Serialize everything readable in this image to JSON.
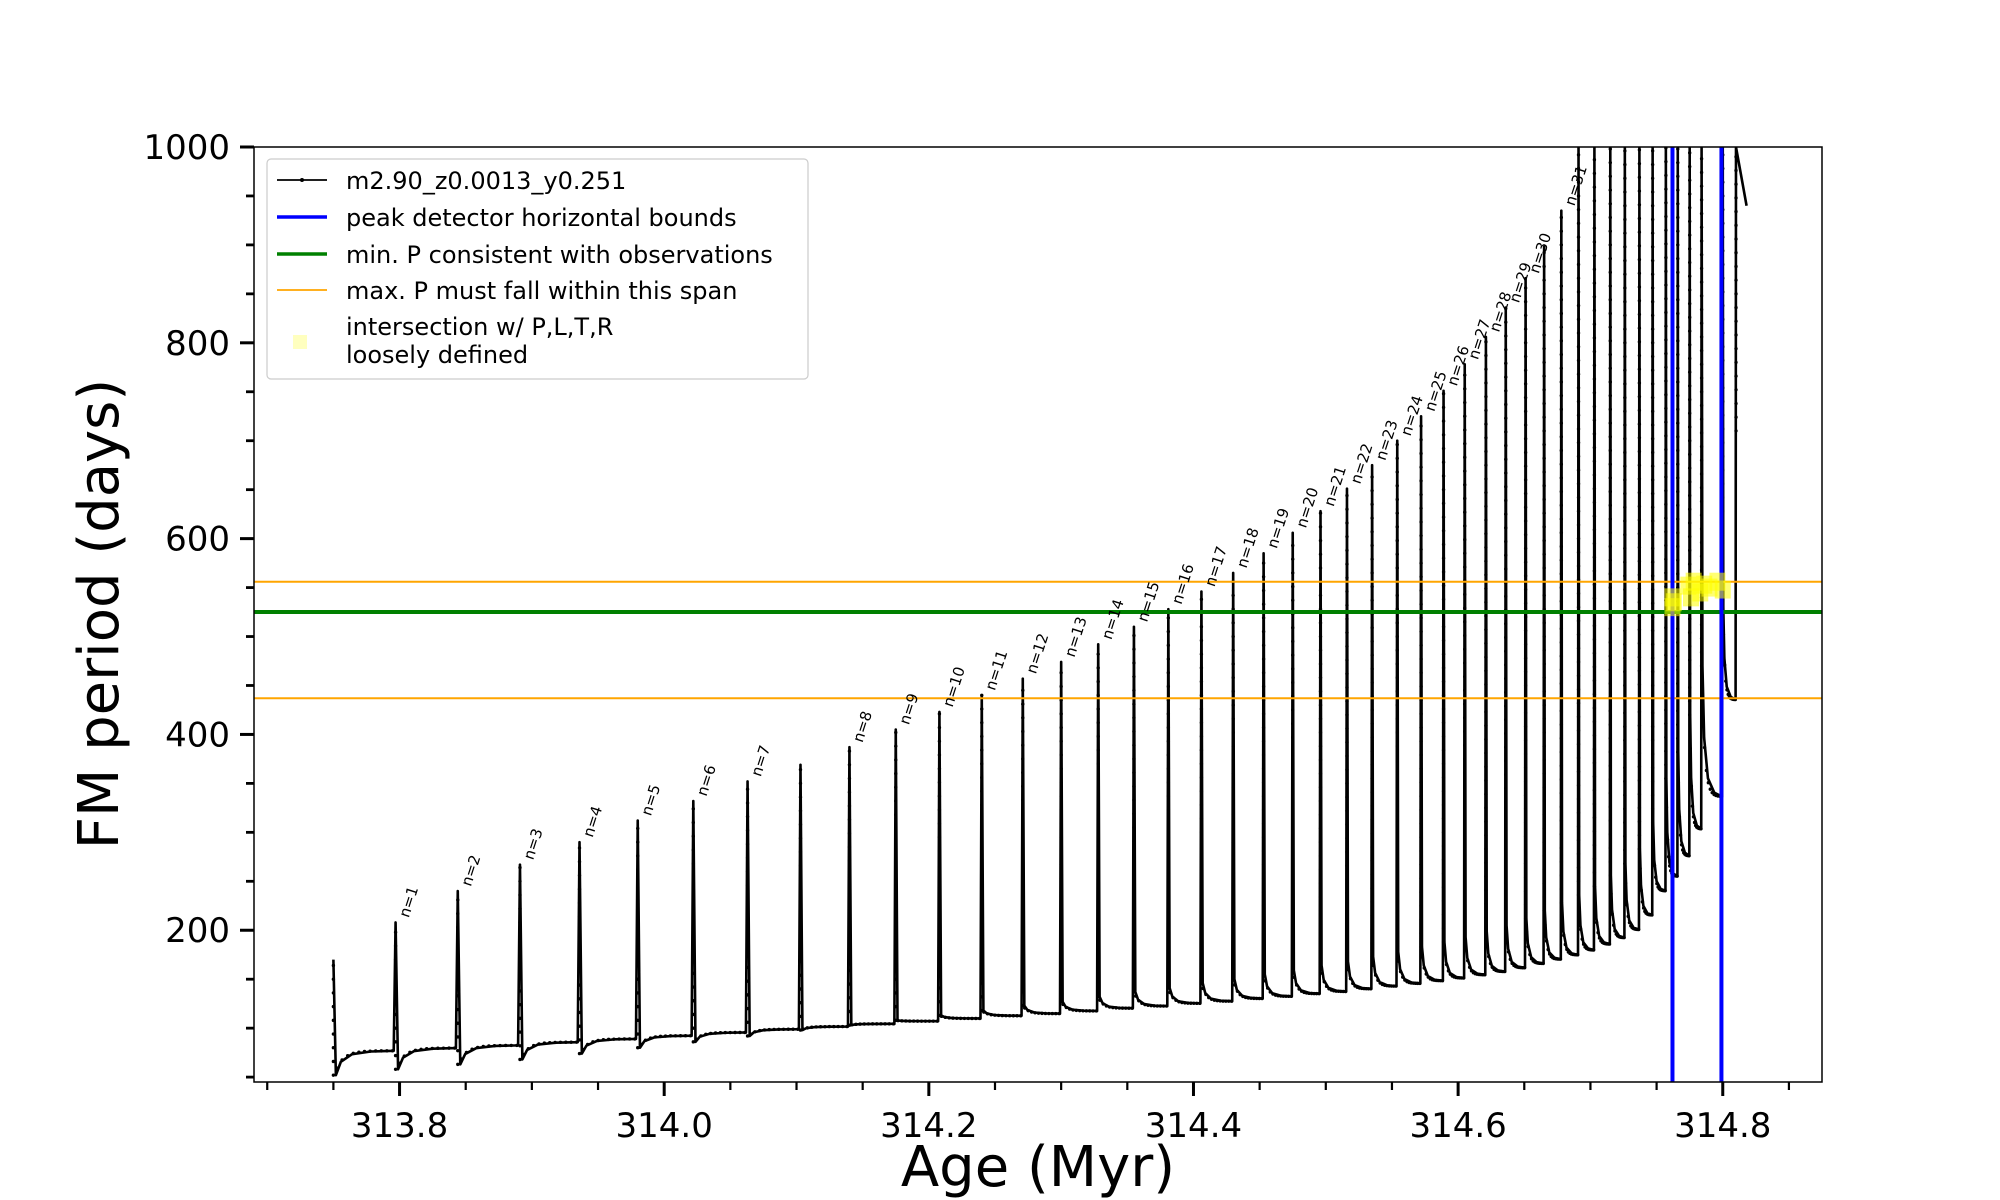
{
  "chart_data": {
    "type": "line",
    "xlabel": "Age (Myr)",
    "ylabel": "FM period (days)",
    "xlim": [
      313.69,
      314.875
    ],
    "ylim": [
      45,
      1000
    ],
    "xticks": [
      313.8,
      314.0,
      314.2,
      314.4,
      314.6,
      314.8
    ],
    "xtick_labels": [
      "313.8",
      "314.0",
      "314.2",
      "314.4",
      "314.6",
      "314.8"
    ],
    "yticks": [
      200,
      400,
      600,
      800,
      1000
    ],
    "ytick_labels": [
      "200",
      "400",
      "600",
      "800",
      "1000"
    ],
    "legend_position": "upper-left",
    "grid": false,
    "series": [
      {
        "name": "m2.90_z0.0013_y0.251",
        "color": "#000000",
        "kind": "line-with-dots",
        "pulses": [
          {
            "x": 313.75,
            "peak": 170,
            "min": 52,
            "label": ""
          },
          {
            "x": 313.797,
            "peak": 208,
            "min": 58,
            "label": "n=1"
          },
          {
            "x": 313.844,
            "peak": 240,
            "min": 63,
            "label": "n=2"
          },
          {
            "x": 313.891,
            "peak": 267,
            "min": 68,
            "label": "n=3"
          },
          {
            "x": 313.936,
            "peak": 290,
            "min": 74,
            "label": "n=4"
          },
          {
            "x": 313.98,
            "peak": 312,
            "min": 80,
            "label": "n=5"
          },
          {
            "x": 314.022,
            "peak": 332,
            "min": 86,
            "label": "n=6"
          },
          {
            "x": 314.063,
            "peak": 352,
            "min": 92,
            "label": "n=7"
          },
          {
            "x": 314.103,
            "peak": 369,
            "min": 98,
            "label": ""
          },
          {
            "x": 314.14,
            "peak": 387,
            "min": 103,
            "label": "n=8"
          },
          {
            "x": 314.175,
            "peak": 405,
            "min": 108,
            "label": "n=9"
          },
          {
            "x": 314.208,
            "peak": 423,
            "min": 113,
            "label": "n=10"
          },
          {
            "x": 314.24,
            "peak": 440,
            "min": 118,
            "label": "n=11"
          },
          {
            "x": 314.271,
            "peak": 457,
            "min": 123,
            "label": "n=12"
          },
          {
            "x": 314.3,
            "peak": 474,
            "min": 127,
            "label": "n=13"
          },
          {
            "x": 314.328,
            "peak": 492,
            "min": 132,
            "label": "n=14"
          },
          {
            "x": 314.355,
            "peak": 510,
            "min": 137,
            "label": "n=15"
          },
          {
            "x": 314.381,
            "peak": 528,
            "min": 141,
            "label": "n=16"
          },
          {
            "x": 314.406,
            "peak": 546,
            "min": 146,
            "label": "n=17"
          },
          {
            "x": 314.43,
            "peak": 565,
            "min": 150,
            "label": "n=18"
          },
          {
            "x": 314.453,
            "peak": 585,
            "min": 155,
            "label": "n=19"
          },
          {
            "x": 314.475,
            "peak": 606,
            "min": 159,
            "label": "n=20"
          },
          {
            "x": 314.496,
            "peak": 628,
            "min": 164,
            "label": "n=21"
          },
          {
            "x": 314.516,
            "peak": 651,
            "min": 168,
            "label": "n=22"
          },
          {
            "x": 314.535,
            "peak": 675,
            "min": 173,
            "label": "n=23"
          },
          {
            "x": 314.554,
            "peak": 700,
            "min": 178,
            "label": "n=24"
          },
          {
            "x": 314.572,
            "peak": 725,
            "min": 183,
            "label": "n=25"
          },
          {
            "x": 314.589,
            "peak": 751,
            "min": 188,
            "label": "n=26"
          },
          {
            "x": 314.605,
            "peak": 778,
            "min": 193,
            "label": "n=27"
          },
          {
            "x": 314.621,
            "peak": 806,
            "min": 199,
            "label": "n=28"
          },
          {
            "x": 314.636,
            "peak": 836,
            "min": 205,
            "label": "n=29"
          },
          {
            "x": 314.651,
            "peak": 866,
            "min": 212,
            "label": "n=30"
          },
          {
            "x": 314.665,
            "peak": 898,
            "min": 220,
            "label": ""
          },
          {
            "x": 314.678,
            "peak": 935,
            "min": 228,
            "label": "n=31"
          },
          {
            "x": 314.691,
            "peak": 1000,
            "min": 236,
            "label": ""
          },
          {
            "x": 314.703,
            "peak": 1000,
            "min": 245,
            "label": ""
          },
          {
            "x": 314.715,
            "peak": 1000,
            "min": 256,
            "label": ""
          },
          {
            "x": 314.726,
            "peak": 1000,
            "min": 268,
            "label": ""
          },
          {
            "x": 314.737,
            "peak": 1000,
            "min": 283,
            "label": ""
          },
          {
            "x": 314.747,
            "peak": 1000,
            "min": 310,
            "label": ""
          },
          {
            "x": 314.757,
            "peak": 1000,
            "min": 355,
            "label": ""
          },
          {
            "x": 314.766,
            "peak": 1000,
            "min": 382,
            "label": ""
          },
          {
            "x": 314.775,
            "peak": 1000,
            "min": 420,
            "label": ""
          },
          {
            "x": 314.784,
            "peak": 1000,
            "min": 470,
            "label": ""
          },
          {
            "x": 314.8,
            "peak": 1000,
            "min": 530,
            "label": ""
          },
          {
            "x": 314.81,
            "peak": 1000,
            "min": 710,
            "label": ""
          }
        ],
        "final_point": {
          "x": 314.818,
          "y": 940
        }
      },
      {
        "name": "peak detector horizontal bounds",
        "color": "#0000ff",
        "kind": "vline",
        "x": [
          314.762,
          314.799
        ]
      },
      {
        "name": "min. P consistent with observations",
        "color": "#008000",
        "kind": "hline",
        "y": [
          525
        ]
      },
      {
        "name": "max. P must fall within this span",
        "color": "#ffa500",
        "kind": "hline",
        "y": [
          437,
          556
        ]
      },
      {
        "name": "intersection w/ P,L,T,R\nloosely defined",
        "name_lines": [
          "intersection w/ P,L,T,R",
          "loosely defined"
        ],
        "color": "#ffff00",
        "kind": "scatter",
        "points": [
          {
            "x": 314.762,
            "y": 540
          },
          {
            "x": 314.762,
            "y": 530
          },
          {
            "x": 314.763,
            "y": 535
          },
          {
            "x": 314.774,
            "y": 552
          },
          {
            "x": 314.776,
            "y": 540
          },
          {
            "x": 314.778,
            "y": 556
          },
          {
            "x": 314.783,
            "y": 545
          },
          {
            "x": 314.786,
            "y": 553
          },
          {
            "x": 314.79,
            "y": 550
          },
          {
            "x": 314.796,
            "y": 556
          },
          {
            "x": 314.8,
            "y": 548
          }
        ]
      }
    ]
  }
}
